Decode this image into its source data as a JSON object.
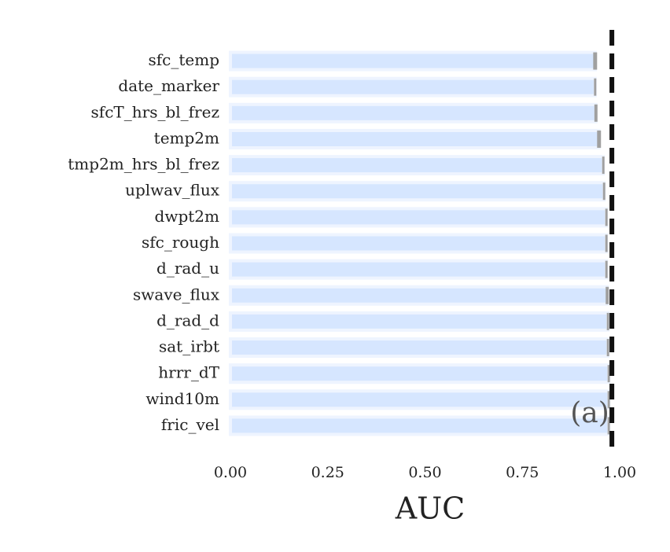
{
  "chart_data": {
    "type": "barh",
    "categories": [
      "sfc_temp",
      "date_marker",
      "sfcT_hrs_bl_frez",
      "temp2m",
      "tmp2m_hrs_bl_frez",
      "uplwav_flux",
      "dwpt2m",
      "sfc_rough",
      "d_rad_u",
      "swave_flux",
      "d_rad_d",
      "sat_irbt",
      "hrrr_dT",
      "wind10m",
      "fric_vel"
    ],
    "values": [
      0.937,
      0.937,
      0.939,
      0.947,
      0.958,
      0.96,
      0.966,
      0.966,
      0.966,
      0.968,
      0.97,
      0.97,
      0.972,
      0.972,
      0.972
    ],
    "errors": [
      0.005,
      0.003,
      0.004,
      0.005,
      0.003,
      0.003,
      0.003,
      0.003,
      0.003,
      0.004,
      0.003,
      0.003,
      0.003,
      0.003,
      0.003
    ],
    "color": "#d6e6ff",
    "error_color": "#a0a0a0",
    "reference_line": 0.98,
    "xlabel": "AUC",
    "annotation": "(a)",
    "xlim": [
      0,
      1.0
    ],
    "xticks": [
      {
        "value": 0,
        "label": "0.00"
      },
      {
        "value": 0.25,
        "label": "0.25"
      },
      {
        "value": 0.5,
        "label": "0.50"
      },
      {
        "value": 0.75,
        "label": "0.75"
      },
      {
        "value": 1.0,
        "label": "1.00"
      }
    ],
    "grid": false
  }
}
